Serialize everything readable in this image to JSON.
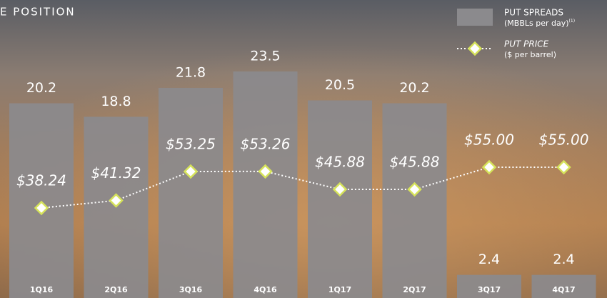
{
  "chart_data": {
    "type": "bar",
    "title": "E POSITION",
    "categories": [
      "1Q16",
      "2Q16",
      "3Q16",
      "4Q16",
      "1Q17",
      "2Q17",
      "3Q17",
      "4Q17"
    ],
    "series": [
      {
        "name": "PUT SPREADS",
        "unit": "(MBBLs per day)",
        "note": "(1)",
        "type": "bar",
        "color": "#8b8a8d",
        "values": [
          20.2,
          18.8,
          21.8,
          23.5,
          20.5,
          20.2,
          2.4,
          2.4
        ]
      },
      {
        "name": "PUT PRICE",
        "unit": "($ per barrel)",
        "type": "line",
        "color": "#d6e35a",
        "values": [
          38.24,
          41.32,
          53.25,
          53.26,
          45.88,
          45.88,
          55.0,
          55.0
        ],
        "value_labels": [
          "$38.24",
          "$41.32",
          "$53.25",
          "$53.26",
          "$45.88",
          "$45.88",
          "$55.00",
          "$55.00"
        ]
      }
    ]
  }
}
